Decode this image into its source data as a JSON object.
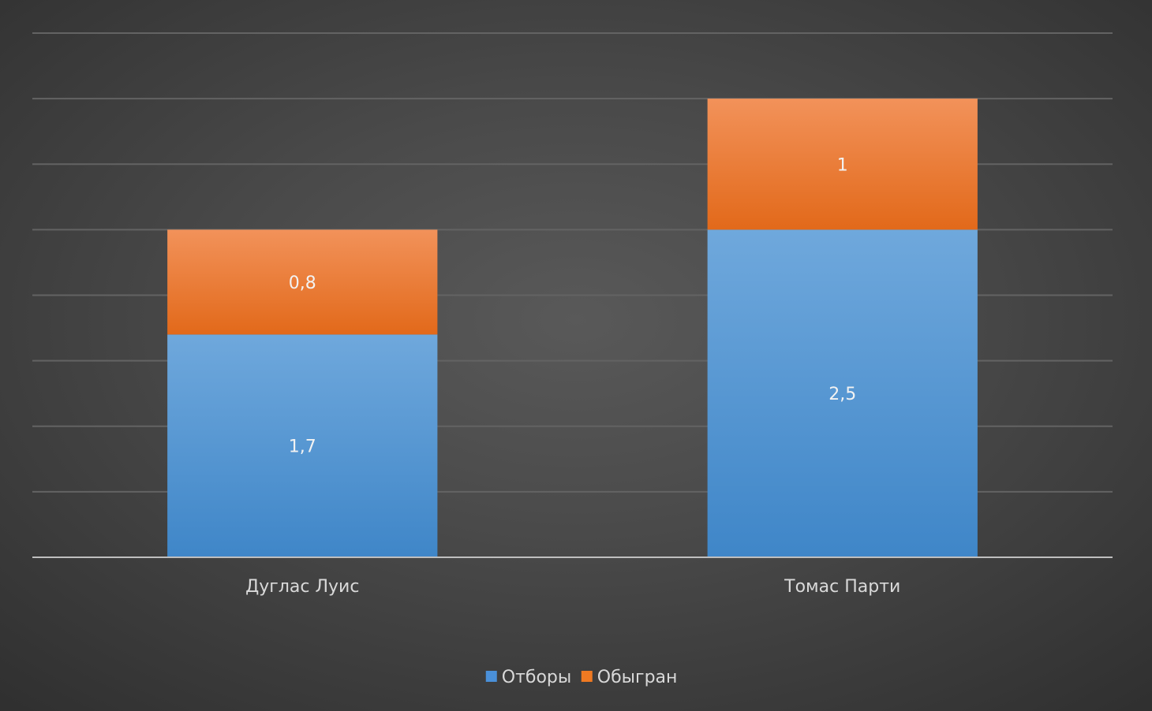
{
  "chart_data": {
    "type": "bar",
    "stacked": true,
    "categories": [
      "Дуглас Луис",
      "Томас Парти"
    ],
    "series": [
      {
        "name": "Отборы",
        "values": [
          1.7,
          2.5
        ],
        "labels": [
          "1,7",
          "2,5"
        ],
        "color": "#4a90d9"
      },
      {
        "name": "Обыгран",
        "values": [
          0.8,
          1
        ],
        "labels": [
          "0,8",
          "1"
        ],
        "color": "#f07a22"
      }
    ],
    "title": "",
    "xlabel": "",
    "ylabel": "",
    "ylim": [
      0,
      4
    ],
    "grid": true,
    "legend": "bottom",
    "background": "#404040"
  }
}
